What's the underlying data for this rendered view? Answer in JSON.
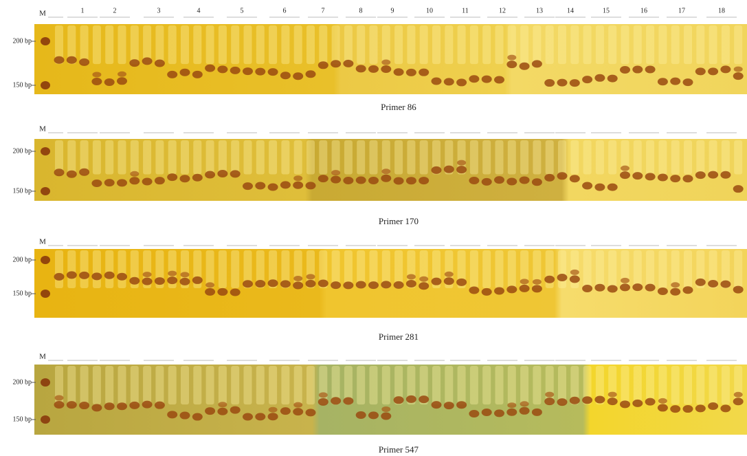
{
  "panels": [
    {
      "marker": "M",
      "lanes": [
        "1",
        "2",
        "3",
        "4",
        "5",
        "6",
        "7",
        "8",
        "9",
        "10",
        "11",
        "12",
        "13",
        "14",
        "15",
        "16",
        "17",
        "18"
      ],
      "size_labels": [
        "200 bp",
        "150 bp"
      ],
      "caption": "Primer 86"
    },
    {
      "marker": "M",
      "size_labels": [
        "200 bp",
        "150 bp"
      ],
      "caption": "Primer 170"
    },
    {
      "marker": "M",
      "size_labels": [
        "200 bp",
        "150 bp"
      ],
      "caption": "Primer 281"
    },
    {
      "marker": "M",
      "size_labels": [
        "200 bp",
        "150 bp"
      ],
      "caption": "Primer 547"
    }
  ]
}
